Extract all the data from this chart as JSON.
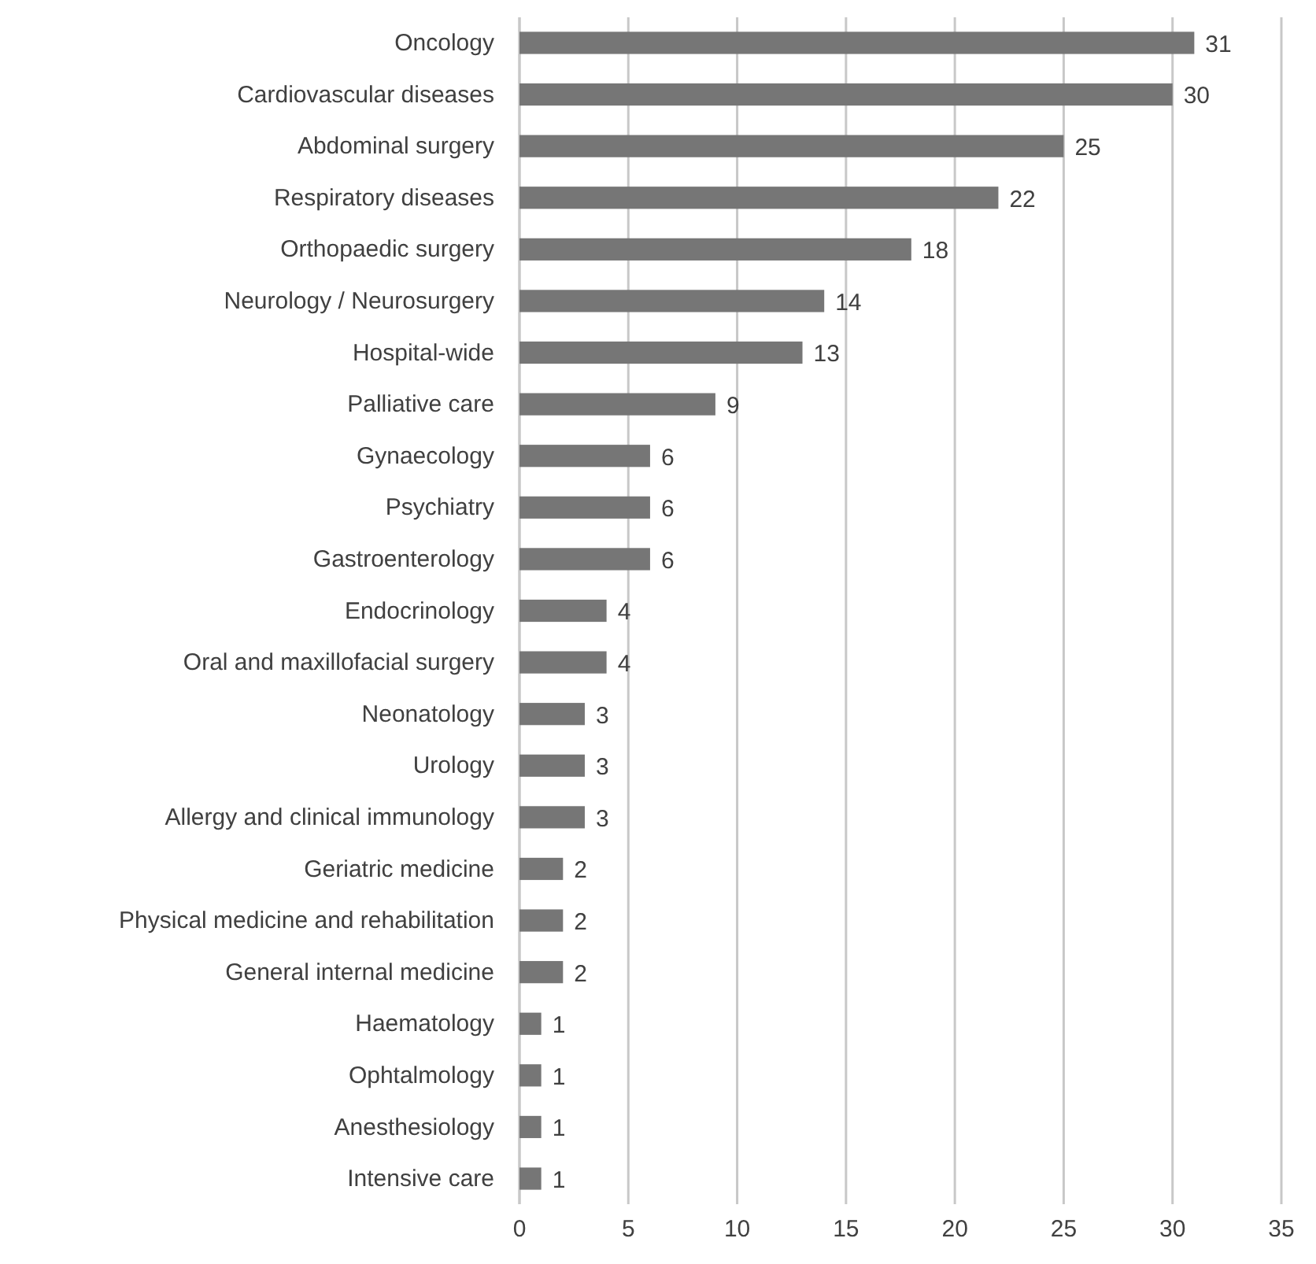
{
  "chart_data": {
    "type": "bar",
    "orientation": "horizontal",
    "categories": [
      "Oncology",
      "Cardiovascular diseases",
      "Abdominal surgery",
      "Respiratory diseases",
      "Orthopaedic surgery",
      "Neurology / Neurosurgery",
      "Hospital-wide",
      "Palliative care",
      "Gynaecology",
      "Psychiatry",
      "Gastroenterology",
      "Endocrinology",
      "Oral and maxillofacial surgery",
      "Neonatology",
      "Urology",
      "Allergy and clinical immunology",
      "Geriatric medicine",
      "Physical medicine and rehabilitation",
      "General internal medicine",
      "Haematology",
      "Ophtalmology",
      "Anesthesiology",
      "Intensive care"
    ],
    "values": [
      31,
      30,
      25,
      22,
      18,
      14,
      13,
      9,
      6,
      6,
      6,
      4,
      4,
      3,
      3,
      3,
      2,
      2,
      2,
      1,
      1,
      1,
      1
    ],
    "color": "#767676",
    "data_labels": true,
    "xlim": [
      0,
      35
    ],
    "xticks": [
      0,
      5,
      10,
      15,
      20,
      25,
      30,
      35
    ],
    "grid": "x"
  }
}
